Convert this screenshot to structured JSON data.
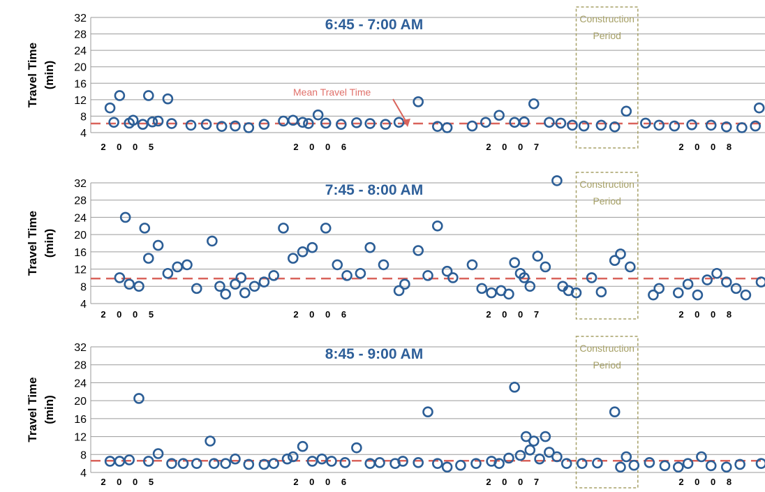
{
  "chart_data": [
    {
      "type": "scatter",
      "title": "6:45 - 7:00 AM",
      "ylabel": "Travel Time (min)",
      "ylim": [
        4,
        32
      ],
      "yticks": [
        4,
        8,
        12,
        16,
        20,
        24,
        28,
        32
      ],
      "xlim": [
        2005.0,
        2008.5
      ],
      "x_tick_labels": [
        {
          "label": "2 0 0 5",
          "x": 2005.2
        },
        {
          "label": "2 0 0 6",
          "x": 2006.2
        },
        {
          "label": "2 0 0 7",
          "x": 2007.2
        },
        {
          "label": "2 0 0 8",
          "x": 2008.2
        }
      ],
      "mean": 6.2,
      "mean_label": "Mean Travel Time",
      "construction_label": [
        "Construction",
        "Period"
      ],
      "construction_x": [
        2007.52,
        2007.84
      ],
      "series": [
        {
          "x": [
            2005.1,
            2005.15,
            2005.2,
            2005.3,
            2005.4,
            2005.12,
            2005.22,
            2005.27,
            2005.32,
            2005.35,
            2005.42,
            2005.52,
            2005.6,
            2005.68,
            2005.75,
            2005.82,
            2005.9,
            2006.0,
            2006.05,
            2006.1,
            2006.13,
            2006.18,
            2006.22,
            2006.3,
            2006.38,
            2006.45,
            2006.53,
            2006.6,
            2006.7,
            2006.8,
            2006.85,
            2006.98,
            2007.05,
            2007.12,
            2007.2,
            2007.25,
            2007.3,
            2007.38,
            2007.44,
            2007.5,
            2007.56,
            2007.65,
            2007.72,
            2007.78,
            2007.88,
            2007.95,
            2008.03,
            2008.12,
            2008.22,
            2008.3,
            2008.38,
            2008.45,
            2008.47
          ],
          "y": [
            10,
            13,
            6.3,
            13,
            12.2,
            6.5,
            7,
            6,
            6.6,
            6.8,
            6.2,
            5.8,
            6,
            5.5,
            5.6,
            5.2,
            6,
            6.8,
            7,
            6.5,
            6.2,
            8.3,
            6.3,
            6,
            6.4,
            6.2,
            6,
            6.5,
            11.5,
            5.5,
            5.2,
            5.6,
            6.5,
            8.2,
            6.5,
            6.6,
            11,
            6.5,
            6.3,
            5.8,
            5.6,
            5.8,
            5.4,
            9.2,
            6.3,
            5.8,
            5.6,
            5.9,
            5.8,
            5.4,
            5.2,
            5.6,
            10
          ],
          "name": ""
        }
      ]
    },
    {
      "type": "scatter",
      "title": "7:45 - 8:00 AM",
      "ylabel": "Travel Time (min)",
      "ylim": [
        4,
        32
      ],
      "yticks": [
        4,
        8,
        12,
        16,
        20,
        24,
        28,
        32
      ],
      "xlim": [
        2005.0,
        2008.5
      ],
      "x_tick_labels": [
        {
          "label": "2 0 0 5",
          "x": 2005.2
        },
        {
          "label": "2 0 0 6",
          "x": 2006.2
        },
        {
          "label": "2 0 0 7",
          "x": 2007.2
        },
        {
          "label": "2 0 0 8",
          "x": 2008.2
        }
      ],
      "mean": 9.8,
      "construction_label": [
        "Construction",
        "Period"
      ],
      "construction_x": [
        2007.52,
        2007.84
      ],
      "series": [
        {
          "x": [
            2005.15,
            2005.18,
            2005.28,
            2005.3,
            2005.35,
            2005.4,
            2005.2,
            2005.25,
            2005.45,
            2005.5,
            2005.55,
            2005.63,
            2005.67,
            2005.7,
            2005.75,
            2005.78,
            2005.8,
            2005.85,
            2005.9,
            2005.95,
            2006.0,
            2006.05,
            2006.1,
            2006.15,
            2006.22,
            2006.28,
            2006.33,
            2006.4,
            2006.45,
            2006.52,
            2006.6,
            2006.63,
            2006.7,
            2006.75,
            2006.8,
            2006.85,
            2006.88,
            2006.98,
            2007.03,
            2007.08,
            2007.13,
            2007.17,
            2007.2,
            2007.23,
            2007.25,
            2007.28,
            2007.32,
            2007.36,
            2007.42,
            2007.45,
            2007.48,
            2007.52,
            2007.6,
            2007.65,
            2007.72,
            2007.75,
            2007.8,
            2007.92,
            2007.95,
            2008.05,
            2008.1,
            2008.15,
            2008.2,
            2008.25,
            2008.3,
            2008.35,
            2008.4,
            2008.48
          ],
          "y": [
            10,
            24,
            21.5,
            14.5,
            17.5,
            11,
            8.5,
            8,
            12.5,
            13,
            7.5,
            18.5,
            8,
            6.2,
            8.5,
            10,
            6.5,
            8,
            9,
            10.5,
            21.5,
            14.5,
            16,
            17,
            21.5,
            13,
            10.5,
            11,
            17,
            13,
            7,
            8.5,
            16.3,
            10.5,
            22,
            11.5,
            10,
            13,
            7.5,
            6.5,
            7,
            6.2,
            13.5,
            11,
            10,
            8,
            15,
            12.5,
            32.5,
            8,
            7,
            6.5,
            10,
            6.7,
            14,
            15.5,
            12.5,
            6,
            7.5,
            6.5,
            8.5,
            6,
            9.5,
            11,
            9,
            7.5,
            6,
            9
          ],
          "name": ""
        }
      ]
    },
    {
      "type": "scatter",
      "title": "8:45 - 9:00 AM",
      "ylabel": "Travel Time (min)",
      "ylim": [
        4,
        32
      ],
      "yticks": [
        4,
        8,
        12,
        16,
        20,
        24,
        28,
        32
      ],
      "xlim": [
        2005.0,
        2008.5
      ],
      "x_tick_labels": [
        {
          "label": "2 0 0 5",
          "x": 2005.2
        },
        {
          "label": "2 0 0 6",
          "x": 2006.2
        },
        {
          "label": "2 0 0 7",
          "x": 2007.2
        },
        {
          "label": "2 0 0 8",
          "x": 2008.2
        }
      ],
      "mean": 6.6,
      "construction_label": [
        "Construction",
        "Period"
      ],
      "construction_x": [
        2007.52,
        2007.84
      ],
      "series": [
        {
          "x": [
            2005.15,
            2005.2,
            2005.25,
            2005.3,
            2005.35,
            2005.1,
            2005.42,
            2005.48,
            2005.55,
            2005.62,
            2005.64,
            2005.7,
            2005.75,
            2005.82,
            2005.9,
            2005.95,
            2006.02,
            2006.05,
            2006.1,
            2006.15,
            2006.2,
            2006.25,
            2006.32,
            2006.38,
            2006.45,
            2006.5,
            2006.58,
            2006.62,
            2006.7,
            2006.75,
            2006.8,
            2006.85,
            2006.92,
            2007.0,
            2007.08,
            2007.12,
            2007.17,
            2007.2,
            2007.23,
            2007.26,
            2007.28,
            2007.3,
            2007.33,
            2007.36,
            2007.38,
            2007.42,
            2007.47,
            2007.55,
            2007.63,
            2007.72,
            2007.75,
            2007.78,
            2007.82,
            2007.9,
            2007.98,
            2008.05,
            2008.1,
            2008.17,
            2008.22,
            2008.3,
            2008.37,
            2008.48
          ],
          "y": [
            6.5,
            6.8,
            20.5,
            6.5,
            8.2,
            6.5,
            6,
            6,
            6,
            11,
            6,
            6,
            7,
            5.8,
            5.8,
            6,
            7,
            7.5,
            9.8,
            6.5,
            7,
            6.5,
            6.2,
            9.5,
            6,
            6.2,
            6,
            6.5,
            6.2,
            17.5,
            6,
            5.2,
            5.6,
            6,
            6.5,
            6,
            7.2,
            23,
            7.8,
            12,
            9,
            11,
            7,
            12,
            8.5,
            7.5,
            6,
            6,
            6.1,
            17.5,
            5.2,
            7.5,
            5.6,
            6.2,
            5.5,
            5.2,
            6,
            7.5,
            5.5,
            5.2,
            5.8,
            6
          ],
          "name": ""
        }
      ]
    }
  ]
}
